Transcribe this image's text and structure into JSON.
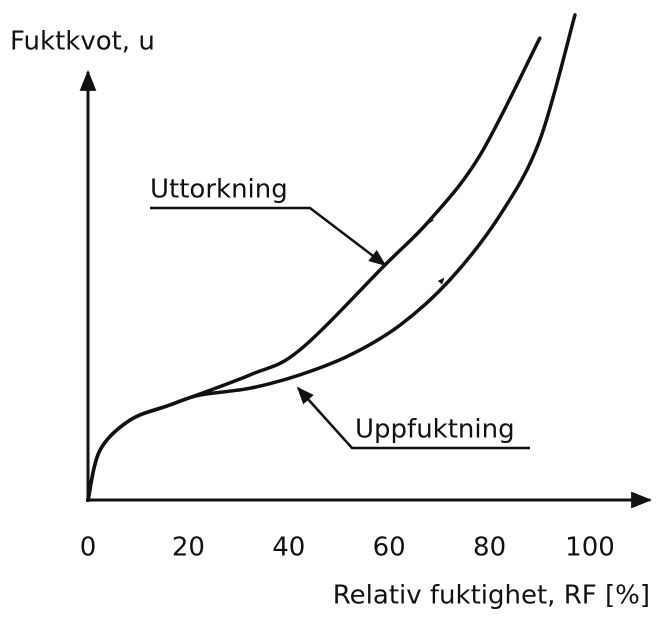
{
  "chart_data": {
    "type": "line",
    "ylabel": "Fuktkvot, u",
    "xlabel": "Relativ fuktighet, RF [%]",
    "xlim": [
      0,
      100
    ],
    "ylim": [
      0,
      115
    ],
    "xticks": [
      0,
      20,
      40,
      60,
      80,
      100
    ],
    "grid": false,
    "annotations": [
      "Uttorkning",
      "Uppfuktning"
    ],
    "series": [
      {
        "name": "Uttorkning",
        "color": "#111111",
        "x": [
          0,
          2.4,
          8.4,
          16.3,
          32.3,
          42.2,
          59.2,
          68.1,
          78.1,
          90
        ],
        "values": [
          0,
          11.6,
          18.6,
          22.1,
          29.1,
          34.9,
          54.7,
          65.1,
          80.2,
          107.4
        ]
      },
      {
        "name": "Uppfuktning",
        "color": "#111111",
        "x": [
          0,
          2.4,
          8.4,
          16.3,
          22.3,
          32.3,
          42.2,
          52.2,
          62.2,
          72.1,
          82.1,
          90,
          97
        ],
        "values": [
          0,
          11.6,
          18.6,
          22.1,
          24.4,
          26,
          29.1,
          33.7,
          40.7,
          51.2,
          66.3,
          83.7,
          112.8
        ]
      }
    ]
  }
}
